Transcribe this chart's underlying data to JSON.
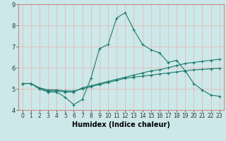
{
  "xlabel": "Humidex (Indice chaleur)",
  "background_color": "#cce8e8",
  "grid_color": "#e8b0b0",
  "line_color": "#1a7a6e",
  "xlim": [
    -0.5,
    23.5
  ],
  "ylim": [
    4,
    9
  ],
  "x_ticks": [
    0,
    1,
    2,
    3,
    4,
    5,
    6,
    7,
    8,
    9,
    10,
    11,
    12,
    13,
    14,
    15,
    16,
    17,
    18,
    19,
    20,
    21,
    22,
    23
  ],
  "y_ticks": [
    4,
    5,
    6,
    7,
    8,
    9
  ],
  "line1_x": [
    0,
    1,
    2,
    3,
    4,
    5,
    6,
    7,
    8,
    9,
    10,
    11,
    12,
    13,
    14,
    15,
    16,
    17,
    18,
    19,
    20,
    21,
    22,
    23
  ],
  "line1_y": [
    5.25,
    5.25,
    5.0,
    4.85,
    4.85,
    4.6,
    4.25,
    4.5,
    5.5,
    6.9,
    7.1,
    8.35,
    8.6,
    7.8,
    7.1,
    6.85,
    6.7,
    6.25,
    6.35,
    5.85,
    5.25,
    4.95,
    4.7,
    4.65
  ],
  "line2_x": [
    0,
    1,
    2,
    3,
    4,
    5,
    6,
    7,
    8,
    9,
    10,
    11,
    12,
    13,
    14,
    15,
    16,
    17,
    18,
    19,
    20,
    21,
    22,
    23
  ],
  "line2_y": [
    5.25,
    5.25,
    5.0,
    4.9,
    4.9,
    4.85,
    4.85,
    5.05,
    5.15,
    5.25,
    5.35,
    5.45,
    5.55,
    5.65,
    5.75,
    5.85,
    5.9,
    6.0,
    6.1,
    6.2,
    6.25,
    6.3,
    6.35,
    6.4
  ],
  "line3_x": [
    0,
    1,
    2,
    3,
    4,
    5,
    6,
    7,
    8,
    9,
    10,
    11,
    12,
    13,
    14,
    15,
    16,
    17,
    18,
    19,
    20,
    21,
    22,
    23
  ],
  "line3_y": [
    5.25,
    5.25,
    5.05,
    4.95,
    4.95,
    4.9,
    4.9,
    5.0,
    5.1,
    5.2,
    5.3,
    5.4,
    5.5,
    5.55,
    5.6,
    5.65,
    5.7,
    5.75,
    5.8,
    5.85,
    5.9,
    5.92,
    5.95,
    5.97
  ],
  "spine_color": "#cc8888",
  "tick_color": "#333333",
  "xlabel_fontsize": 7,
  "xlabel_fontweight": "bold",
  "tick_fontsize": 5.5
}
